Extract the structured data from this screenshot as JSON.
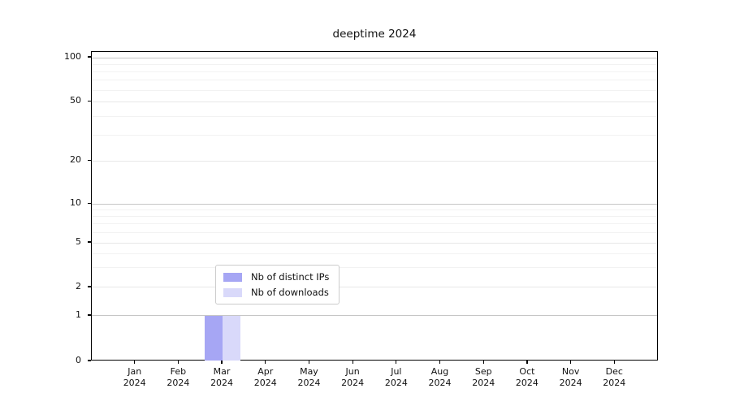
{
  "chart_data": {
    "type": "bar",
    "title": "deeptime 2024",
    "categories": [
      "Jan",
      "Feb",
      "Mar",
      "Apr",
      "May",
      "Jun",
      "Jul",
      "Aug",
      "Sep",
      "Oct",
      "Nov",
      "Dec"
    ],
    "category_year": "2024",
    "series": [
      {
        "name": "Nb of distinct IPs",
        "color": "#a6a6f4",
        "values": [
          0,
          0,
          1,
          0,
          0,
          0,
          0,
          0,
          0,
          0,
          0,
          0
        ]
      },
      {
        "name": "Nb of downloads",
        "color": "#d9d9fa",
        "values": [
          0,
          0,
          1,
          0,
          0,
          0,
          0,
          0,
          0,
          0,
          0,
          0
        ]
      }
    ],
    "xlabel": "",
    "ylabel": "",
    "yticks": [
      0,
      1,
      2,
      5,
      10,
      20,
      50,
      100
    ],
    "yminorticks": [
      3,
      4,
      6,
      7,
      8,
      9,
      30,
      40,
      60,
      70,
      80,
      90
    ],
    "yscale": "symlog",
    "ylim": [
      0,
      100
    ],
    "grid": true,
    "legend_position": "lower center",
    "colors": {
      "grid_decade": "#c6c6c6",
      "grid_major": "#e8e8e8",
      "grid_minor": "#f2f2f2",
      "axis": "#000000"
    }
  }
}
